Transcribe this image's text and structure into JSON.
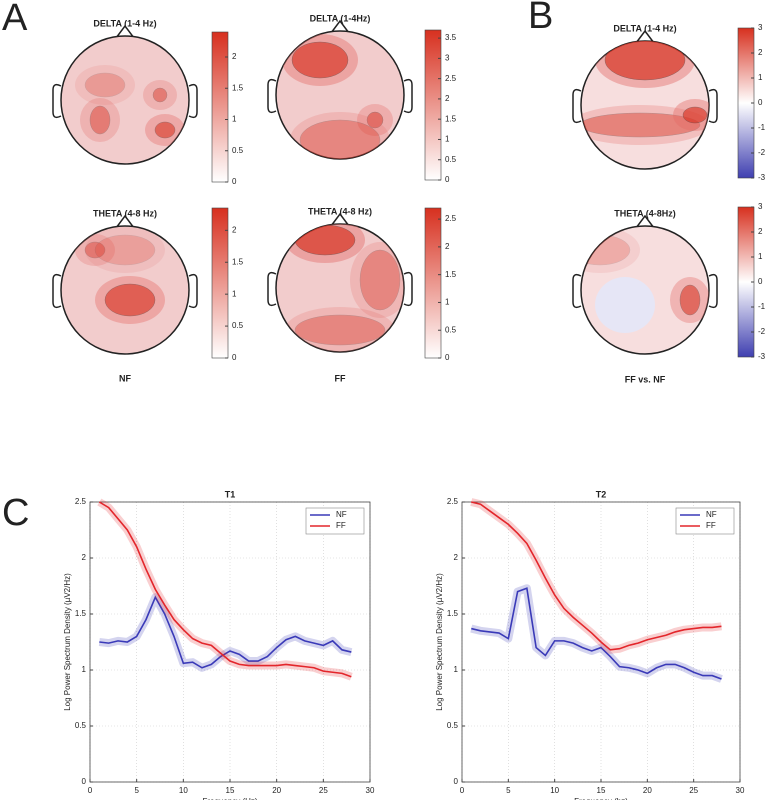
{
  "panel_letters": [
    "A",
    "B",
    "C"
  ],
  "column_labels": [
    "NF",
    "FF",
    "FF vs. NF"
  ],
  "chart_data": [
    {
      "type": "topomap",
      "title": "DELTA (1-4 Hz)",
      "clim": [
        0,
        2.4
      ],
      "cticks": [
        0,
        0.5,
        1,
        1.5,
        2
      ],
      "colors": [
        "#ffffff",
        "#d7301f"
      ]
    },
    {
      "type": "topomap",
      "title": "DELTA (1-4Hz)",
      "clim": [
        0,
        3.7
      ],
      "cticks": [
        0,
        0.5,
        1,
        1.5,
        2,
        2.5,
        3,
        3.5
      ],
      "colors": [
        "#ffffff",
        "#d7301f"
      ]
    },
    {
      "type": "topomap",
      "title": "THETA (4-8 Hz)",
      "clim": [
        0,
        2.35
      ],
      "cticks": [
        0,
        0.5,
        1,
        1.5,
        2
      ],
      "colors": [
        "#ffffff",
        "#d7301f"
      ]
    },
    {
      "type": "topomap",
      "title": "THETA (4-8 Hz)",
      "clim": [
        0,
        2.7
      ],
      "cticks": [
        0,
        0.5,
        1,
        1.5,
        2,
        2.5
      ],
      "colors": [
        "#ffffff",
        "#d7301f"
      ]
    },
    {
      "type": "topomap",
      "title": "DELTA (1-4 Hz)",
      "clim": [
        -3,
        3
      ],
      "cticks": [
        -3,
        -2,
        -1,
        0,
        1,
        2,
        3
      ],
      "colors": [
        "#3f3fb0",
        "#ffffff",
        "#d7301f"
      ]
    },
    {
      "type": "topomap",
      "title": "THETA (4-8Hz)",
      "clim": [
        -3,
        3
      ],
      "cticks": [
        -3,
        -2,
        -1,
        0,
        1,
        2,
        3
      ],
      "colors": [
        "#3f3fb0",
        "#ffffff",
        "#d7301f"
      ]
    },
    {
      "type": "line",
      "title": "T1",
      "x_label": "Frequency (Hz)",
      "y_label": "Log Power Spectrum Density (µV2/Hz)",
      "x": [
        1,
        2,
        3,
        4,
        5,
        6,
        7,
        8,
        9,
        10,
        11,
        12,
        13,
        14,
        15,
        16,
        17,
        18,
        19,
        20,
        21,
        22,
        23,
        24,
        25,
        26,
        27,
        28
      ],
      "series": [
        {
          "name": "NF",
          "color": "#3a3ab8",
          "values": [
            1.25,
            1.24,
            1.26,
            1.25,
            1.3,
            1.45,
            1.65,
            1.5,
            1.3,
            1.06,
            1.07,
            1.02,
            1.05,
            1.12,
            1.17,
            1.14,
            1.08,
            1.08,
            1.12,
            1.2,
            1.27,
            1.3,
            1.26,
            1.24,
            1.22,
            1.26,
            1.18,
            1.16
          ]
        },
        {
          "name": "FF",
          "color": "#e3262b",
          "values": [
            2.5,
            2.45,
            2.35,
            2.25,
            2.1,
            1.9,
            1.72,
            1.58,
            1.45,
            1.36,
            1.28,
            1.24,
            1.22,
            1.15,
            1.08,
            1.05,
            1.04,
            1.04,
            1.04,
            1.04,
            1.05,
            1.04,
            1.03,
            1.02,
            0.99,
            0.98,
            0.97,
            0.94
          ]
        }
      ],
      "xlim": [
        0,
        30
      ],
      "xticks": [
        0,
        5,
        10,
        15,
        20,
        25,
        30
      ],
      "ylim": [
        0,
        2.5
      ],
      "yticks": [
        0,
        0.5,
        1,
        1.5,
        2,
        2.5
      ],
      "grid": true,
      "legend": "upper right"
    },
    {
      "type": "line",
      "title": "T2",
      "x_label": "Frequency (hz)",
      "y_label": "Log Power Spectrum Density (µV2/Hz)",
      "x": [
        1,
        2,
        3,
        4,
        5,
        6,
        7,
        8,
        9,
        10,
        11,
        12,
        13,
        14,
        15,
        16,
        17,
        18,
        19,
        20,
        21,
        22,
        23,
        24,
        25,
        26,
        27,
        28
      ],
      "series": [
        {
          "name": "NF",
          "color": "#3a3ab8",
          "values": [
            1.37,
            1.35,
            1.34,
            1.33,
            1.28,
            1.7,
            1.73,
            1.2,
            1.13,
            1.26,
            1.26,
            1.24,
            1.2,
            1.17,
            1.2,
            1.12,
            1.03,
            1.02,
            1.0,
            0.97,
            1.02,
            1.05,
            1.05,
            1.02,
            0.98,
            0.95,
            0.95,
            0.92
          ]
        },
        {
          "name": "FF",
          "color": "#e3262b",
          "values": [
            2.5,
            2.48,
            2.42,
            2.36,
            2.3,
            2.22,
            2.13,
            1.98,
            1.82,
            1.67,
            1.55,
            1.47,
            1.4,
            1.33,
            1.25,
            1.18,
            1.19,
            1.22,
            1.24,
            1.27,
            1.29,
            1.31,
            1.34,
            1.36,
            1.37,
            1.38,
            1.38,
            1.39
          ]
        }
      ],
      "xlim": [
        0,
        30
      ],
      "xticks": [
        0,
        5,
        10,
        15,
        20,
        25,
        30
      ],
      "ylim": [
        0,
        2.5
      ],
      "yticks": [
        0,
        0.5,
        1,
        1.5,
        2,
        2.5
      ],
      "grid": true,
      "legend": "upper right"
    }
  ]
}
